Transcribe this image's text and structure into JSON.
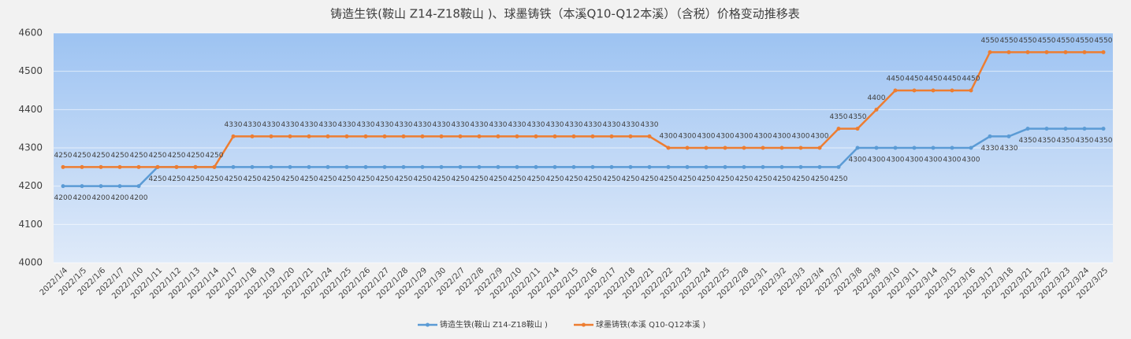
{
  "chart_data": {
    "type": "line",
    "title": "铸造生铁(鞍山 Z14-Z18鞍山 )、球墨铸铁（本溪Q10-Q12本溪）（含税）价格变动推移表",
    "categories": [
      "2022/1/4",
      "2022/1/5",
      "2022/1/6",
      "2022/1/7",
      "2022/1/10",
      "2022/1/11",
      "2022/1/12",
      "2022/1/13",
      "2022/1/14",
      "2022/1/17",
      "2022/1/18",
      "2022/1/19",
      "2022/1/20",
      "2022/1/21",
      "2022/1/24",
      "2022/1/25",
      "2022/1/26",
      "2022/1/27",
      "2022/1/28",
      "2022/1/29",
      "2022/1/30",
      "2022/2/7",
      "2022/2/8",
      "2022/2/9",
      "2022/2/10",
      "2022/2/11",
      "2022/2/14",
      "2022/2/15",
      "2022/2/16",
      "2022/2/17",
      "2022/2/18",
      "2022/2/21",
      "2022/2/22",
      "2022/2/23",
      "2022/2/24",
      "2022/2/25",
      "2022/2/28",
      "2022/3/1",
      "2022/3/2",
      "2022/3/3",
      "2022/3/4",
      "2022/3/7",
      "2022/3/8",
      "2022/3/9",
      "2022/3/10",
      "2022/3/11",
      "2022/3/14",
      "2022/3/15",
      "2022/3/16",
      "2022/3/17",
      "2022/3/18",
      "2022/3/21",
      "2022/3/22",
      "2022/3/23",
      "2022/3/24",
      "2022/3/25"
    ],
    "series": [
      {
        "name": "铸造生铁(鞍山 Z14-Z18鞍山 )",
        "color": "#5b9bd5",
        "label_position": "below",
        "values": [
          4200,
          4200,
          4200,
          4200,
          4200,
          4250,
          4250,
          4250,
          4250,
          4250,
          4250,
          4250,
          4250,
          4250,
          4250,
          4250,
          4250,
          4250,
          4250,
          4250,
          4250,
          4250,
          4250,
          4250,
          4250,
          4250,
          4250,
          4250,
          4250,
          4250,
          4250,
          4250,
          4250,
          4250,
          4250,
          4250,
          4250,
          4250,
          4250,
          4250,
          4250,
          4250,
          4300,
          4300,
          4300,
          4300,
          4300,
          4300,
          4300,
          4330,
          4330,
          4350,
          4350,
          4350,
          4350,
          4350
        ]
      },
      {
        "name": "球墨铸铁(本溪 Q10-Q12本溪 )",
        "color": "#ed7d31",
        "label_position": "above",
        "values": [
          4250,
          4250,
          4250,
          4250,
          4250,
          4250,
          4250,
          4250,
          4250,
          4330,
          4330,
          4330,
          4330,
          4330,
          4330,
          4330,
          4330,
          4330,
          4330,
          4330,
          4330,
          4330,
          4330,
          4330,
          4330,
          4330,
          4330,
          4330,
          4330,
          4330,
          4330,
          4330,
          4300,
          4300,
          4300,
          4300,
          4300,
          4300,
          4300,
          4300,
          4300,
          4350,
          4350,
          4400,
          4450,
          4450,
          4450,
          4450,
          4450,
          4550,
          4550,
          4550,
          4550,
          4550,
          4550,
          4550
        ]
      }
    ],
    "ylim": [
      4000,
      4600
    ],
    "yticks": [
      4000,
      4100,
      4200,
      4300,
      4400,
      4500,
      4600
    ],
    "grid": true,
    "legend": "bottom"
  }
}
